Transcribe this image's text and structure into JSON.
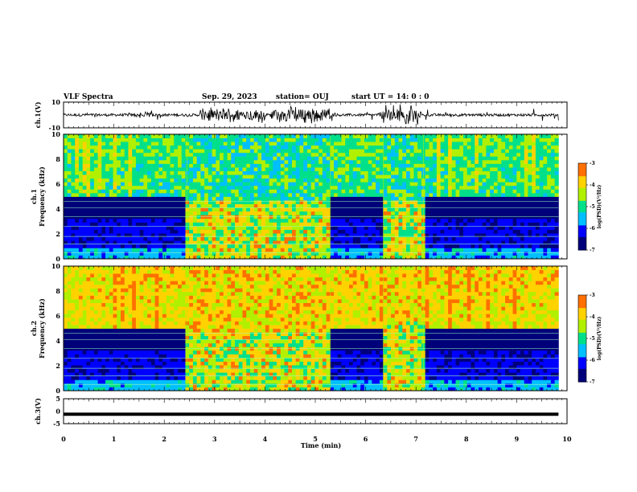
{
  "header": {
    "title": "VLF Spectra",
    "date": "Sep. 29, 2023",
    "station": "station= OUJ",
    "start": "start  UT  =   14: 0  : 0"
  },
  "colors": {
    "background": "#ffffff",
    "axis": "#000000",
    "colormap": [
      "#00007a",
      "#0000ff",
      "#00bfff",
      "#00e08a",
      "#b0f000",
      "#ffd200",
      "#ff7000",
      "#e00000",
      "#ffffff"
    ]
  },
  "chart_data": [
    {
      "type": "line",
      "panel": "ch1-waveform",
      "ylabel": "ch.1(V)",
      "ylim": [
        -10,
        10
      ],
      "yticks": [
        "10",
        "-10"
      ],
      "xlim": [
        0,
        10
      ],
      "x_end": 9.83,
      "baseline": 0,
      "bursts_min": [
        {
          "t": [
            1.4,
            1.8
          ],
          "amp": 3
        },
        {
          "t": [
            2.7,
            4.0
          ],
          "amp": 7
        },
        {
          "t": [
            4.1,
            5.3
          ],
          "amp": 8
        },
        {
          "t": [
            6.3,
            7.1
          ],
          "amp": 9
        }
      ]
    },
    {
      "type": "heatmap",
      "panel": "ch1-spectrogram",
      "ylabel": "ch.1 Frequency (kHz)",
      "xlim": [
        0,
        10
      ],
      "x_end": 9.83,
      "ylim": [
        0,
        10
      ],
      "yticks": [
        "0",
        "2",
        "4",
        "6",
        "8",
        "10"
      ],
      "colorbar": {
        "label": "log(PSD)(V²/Hz)",
        "range": [
          -7,
          -3
        ],
        "ticks": [
          "-3",
          "-4",
          "-5",
          "-6",
          "-7"
        ]
      },
      "events_min": [
        [
          2.45,
          5.3
        ],
        [
          6.35,
          7.15
        ]
      ]
    },
    {
      "type": "heatmap",
      "panel": "ch2-spectrogram",
      "ylabel": "ch.2 Frequency (kHz)",
      "xlim": [
        0,
        10
      ],
      "x_end": 9.83,
      "ylim": [
        0,
        10
      ],
      "yticks": [
        "0",
        "2",
        "4",
        "6",
        "8",
        "10"
      ],
      "colorbar": {
        "label": "log(PSD)(V²/Hz)",
        "range": [
          -7,
          -3
        ],
        "ticks": [
          "-3",
          "-4",
          "-5",
          "-6",
          "-7"
        ]
      },
      "events_min": [
        [
          2.45,
          5.3
        ],
        [
          6.35,
          7.15
        ]
      ]
    },
    {
      "type": "line",
      "panel": "ch3-waveform",
      "ylabel": "ch.3(V)",
      "ylim": [
        -5,
        5
      ],
      "yticks": [
        "5",
        "0",
        "-5"
      ],
      "xlim": [
        0,
        10
      ],
      "x_end": 9.83,
      "value": -1.2
    }
  ],
  "xaxis": {
    "label": "Time  (min)",
    "ticks": [
      "0",
      "1",
      "2",
      "3",
      "4",
      "5",
      "6",
      "7",
      "8",
      "9",
      "10"
    ]
  }
}
